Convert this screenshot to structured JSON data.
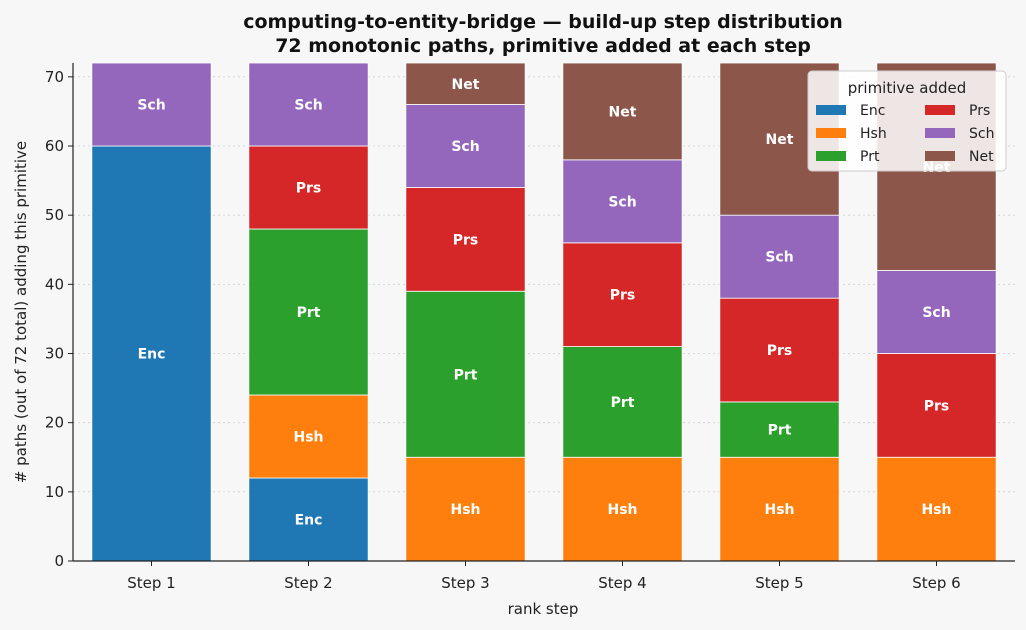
{
  "chart_data": {
    "type": "bar",
    "stacked": true,
    "title": "computing-to-entity-bridge — build-up step distribution",
    "subtitle": "72 monotonic paths, primitive added at each step",
    "xlabel": "rank step",
    "ylabel": "# paths (out of 72 total) adding this primitive",
    "categories": [
      "Step 1",
      "Step 2",
      "Step 3",
      "Step 4",
      "Step 5",
      "Step 6"
    ],
    "ylim": [
      0,
      72
    ],
    "yticks": [
      0,
      10,
      20,
      30,
      40,
      50,
      60,
      70
    ],
    "grid": "horizontal dotted",
    "legend": {
      "title": "primitive added",
      "placement": "top-right",
      "columns": 2
    },
    "series": [
      {
        "name": "Enc",
        "color": "#1f77b4",
        "values": [
          60,
          12,
          0,
          0,
          0,
          0
        ]
      },
      {
        "name": "Hsh",
        "color": "#ff7f0e",
        "values": [
          0,
          12,
          15,
          15,
          15,
          15
        ]
      },
      {
        "name": "Prt",
        "color": "#2ca02c",
        "values": [
          0,
          24,
          24,
          16,
          8,
          0
        ]
      },
      {
        "name": "Prs",
        "color": "#d62728",
        "values": [
          0,
          12,
          15,
          15,
          15,
          15
        ]
      },
      {
        "name": "Sch",
        "color": "#9467bd",
        "values": [
          12,
          12,
          12,
          12,
          12,
          12
        ]
      },
      {
        "name": "Net",
        "color": "#8c564b",
        "values": [
          0,
          0,
          6,
          14,
          22,
          30
        ]
      }
    ]
  }
}
